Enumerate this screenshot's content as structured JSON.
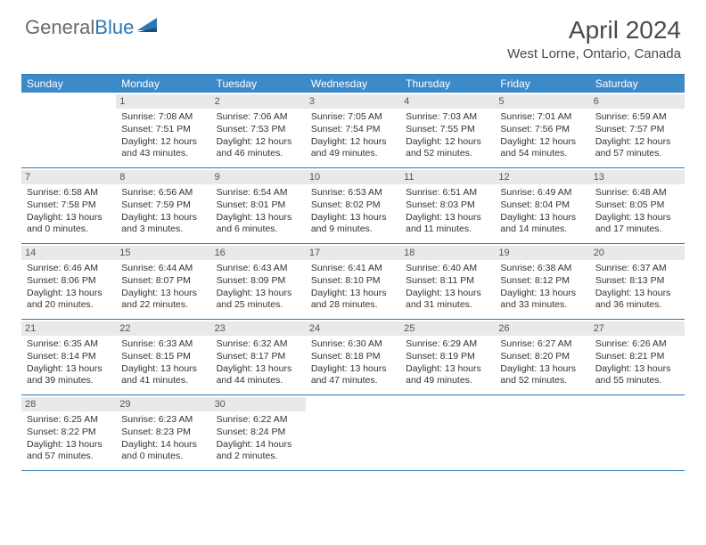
{
  "logo": {
    "word1": "General",
    "word2": "Blue"
  },
  "title": "April 2024",
  "location": "West Lorne, Ontario, Canada",
  "colors": {
    "header_bg": "#3d8ac9",
    "border": "#2d77b6",
    "daynum_bg": "#e9e9e9",
    "text": "#333333",
    "logo_gray": "#6b6b6b",
    "logo_blue": "#2d77b6"
  },
  "day_names": [
    "Sunday",
    "Monday",
    "Tuesday",
    "Wednesday",
    "Thursday",
    "Friday",
    "Saturday"
  ],
  "weeks": [
    [
      {
        "num": "",
        "sunrise": "",
        "sunset": "",
        "daylight": ""
      },
      {
        "num": "1",
        "sunrise": "Sunrise: 7:08 AM",
        "sunset": "Sunset: 7:51 PM",
        "daylight": "Daylight: 12 hours and 43 minutes."
      },
      {
        "num": "2",
        "sunrise": "Sunrise: 7:06 AM",
        "sunset": "Sunset: 7:53 PM",
        "daylight": "Daylight: 12 hours and 46 minutes."
      },
      {
        "num": "3",
        "sunrise": "Sunrise: 7:05 AM",
        "sunset": "Sunset: 7:54 PM",
        "daylight": "Daylight: 12 hours and 49 minutes."
      },
      {
        "num": "4",
        "sunrise": "Sunrise: 7:03 AM",
        "sunset": "Sunset: 7:55 PM",
        "daylight": "Daylight: 12 hours and 52 minutes."
      },
      {
        "num": "5",
        "sunrise": "Sunrise: 7:01 AM",
        "sunset": "Sunset: 7:56 PM",
        "daylight": "Daylight: 12 hours and 54 minutes."
      },
      {
        "num": "6",
        "sunrise": "Sunrise: 6:59 AM",
        "sunset": "Sunset: 7:57 PM",
        "daylight": "Daylight: 12 hours and 57 minutes."
      }
    ],
    [
      {
        "num": "7",
        "sunrise": "Sunrise: 6:58 AM",
        "sunset": "Sunset: 7:58 PM",
        "daylight": "Daylight: 13 hours and 0 minutes."
      },
      {
        "num": "8",
        "sunrise": "Sunrise: 6:56 AM",
        "sunset": "Sunset: 7:59 PM",
        "daylight": "Daylight: 13 hours and 3 minutes."
      },
      {
        "num": "9",
        "sunrise": "Sunrise: 6:54 AM",
        "sunset": "Sunset: 8:01 PM",
        "daylight": "Daylight: 13 hours and 6 minutes."
      },
      {
        "num": "10",
        "sunrise": "Sunrise: 6:53 AM",
        "sunset": "Sunset: 8:02 PM",
        "daylight": "Daylight: 13 hours and 9 minutes."
      },
      {
        "num": "11",
        "sunrise": "Sunrise: 6:51 AM",
        "sunset": "Sunset: 8:03 PM",
        "daylight": "Daylight: 13 hours and 11 minutes."
      },
      {
        "num": "12",
        "sunrise": "Sunrise: 6:49 AM",
        "sunset": "Sunset: 8:04 PM",
        "daylight": "Daylight: 13 hours and 14 minutes."
      },
      {
        "num": "13",
        "sunrise": "Sunrise: 6:48 AM",
        "sunset": "Sunset: 8:05 PM",
        "daylight": "Daylight: 13 hours and 17 minutes."
      }
    ],
    [
      {
        "num": "14",
        "sunrise": "Sunrise: 6:46 AM",
        "sunset": "Sunset: 8:06 PM",
        "daylight": "Daylight: 13 hours and 20 minutes."
      },
      {
        "num": "15",
        "sunrise": "Sunrise: 6:44 AM",
        "sunset": "Sunset: 8:07 PM",
        "daylight": "Daylight: 13 hours and 22 minutes."
      },
      {
        "num": "16",
        "sunrise": "Sunrise: 6:43 AM",
        "sunset": "Sunset: 8:09 PM",
        "daylight": "Daylight: 13 hours and 25 minutes."
      },
      {
        "num": "17",
        "sunrise": "Sunrise: 6:41 AM",
        "sunset": "Sunset: 8:10 PM",
        "daylight": "Daylight: 13 hours and 28 minutes."
      },
      {
        "num": "18",
        "sunrise": "Sunrise: 6:40 AM",
        "sunset": "Sunset: 8:11 PM",
        "daylight": "Daylight: 13 hours and 31 minutes."
      },
      {
        "num": "19",
        "sunrise": "Sunrise: 6:38 AM",
        "sunset": "Sunset: 8:12 PM",
        "daylight": "Daylight: 13 hours and 33 minutes."
      },
      {
        "num": "20",
        "sunrise": "Sunrise: 6:37 AM",
        "sunset": "Sunset: 8:13 PM",
        "daylight": "Daylight: 13 hours and 36 minutes."
      }
    ],
    [
      {
        "num": "21",
        "sunrise": "Sunrise: 6:35 AM",
        "sunset": "Sunset: 8:14 PM",
        "daylight": "Daylight: 13 hours and 39 minutes."
      },
      {
        "num": "22",
        "sunrise": "Sunrise: 6:33 AM",
        "sunset": "Sunset: 8:15 PM",
        "daylight": "Daylight: 13 hours and 41 minutes."
      },
      {
        "num": "23",
        "sunrise": "Sunrise: 6:32 AM",
        "sunset": "Sunset: 8:17 PM",
        "daylight": "Daylight: 13 hours and 44 minutes."
      },
      {
        "num": "24",
        "sunrise": "Sunrise: 6:30 AM",
        "sunset": "Sunset: 8:18 PM",
        "daylight": "Daylight: 13 hours and 47 minutes."
      },
      {
        "num": "25",
        "sunrise": "Sunrise: 6:29 AM",
        "sunset": "Sunset: 8:19 PM",
        "daylight": "Daylight: 13 hours and 49 minutes."
      },
      {
        "num": "26",
        "sunrise": "Sunrise: 6:27 AM",
        "sunset": "Sunset: 8:20 PM",
        "daylight": "Daylight: 13 hours and 52 minutes."
      },
      {
        "num": "27",
        "sunrise": "Sunrise: 6:26 AM",
        "sunset": "Sunset: 8:21 PM",
        "daylight": "Daylight: 13 hours and 55 minutes."
      }
    ],
    [
      {
        "num": "28",
        "sunrise": "Sunrise: 6:25 AM",
        "sunset": "Sunset: 8:22 PM",
        "daylight": "Daylight: 13 hours and 57 minutes."
      },
      {
        "num": "29",
        "sunrise": "Sunrise: 6:23 AM",
        "sunset": "Sunset: 8:23 PM",
        "daylight": "Daylight: 14 hours and 0 minutes."
      },
      {
        "num": "30",
        "sunrise": "Sunrise: 6:22 AM",
        "sunset": "Sunset: 8:24 PM",
        "daylight": "Daylight: 14 hours and 2 minutes."
      },
      {
        "num": "",
        "sunrise": "",
        "sunset": "",
        "daylight": ""
      },
      {
        "num": "",
        "sunrise": "",
        "sunset": "",
        "daylight": ""
      },
      {
        "num": "",
        "sunrise": "",
        "sunset": "",
        "daylight": ""
      },
      {
        "num": "",
        "sunrise": "",
        "sunset": "",
        "daylight": ""
      }
    ]
  ]
}
